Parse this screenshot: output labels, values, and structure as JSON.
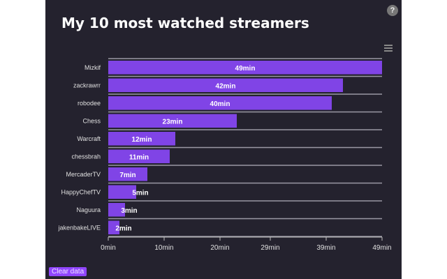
{
  "title": "My 10 most watched streamers",
  "help_label": "?",
  "clear_button": "Clear data",
  "colors": {
    "bar": "#8044e6",
    "background": "#24222e",
    "text": "#ffffff"
  },
  "icons": {
    "help": "help-icon",
    "menu": "hamburger-menu-icon"
  },
  "chart_data": {
    "type": "bar",
    "orientation": "horizontal",
    "title": "My 10 most watched streamers",
    "categories": [
      "Mizkif",
      "zackrawrr",
      "robodee",
      "Chess",
      "Warcraft",
      "chessbrah",
      "MercaderTV",
      "HappyChefTV",
      "Naguura",
      "jakenbakeLIVE"
    ],
    "values": [
      49,
      42,
      40,
      23,
      12,
      11,
      7,
      5,
      3,
      2
    ],
    "data_labels": [
      "49min",
      "42min",
      "40min",
      "23min",
      "12min",
      "11min",
      "7min",
      "5min",
      "3min",
      "2min"
    ],
    "unit": "min",
    "xlim": [
      0,
      49
    ],
    "x_ticks": [
      0,
      10,
      20,
      29,
      39,
      49
    ],
    "x_tick_labels": [
      "0min",
      "10min",
      "20min",
      "29min",
      "39min",
      "49min"
    ],
    "grid": true
  }
}
